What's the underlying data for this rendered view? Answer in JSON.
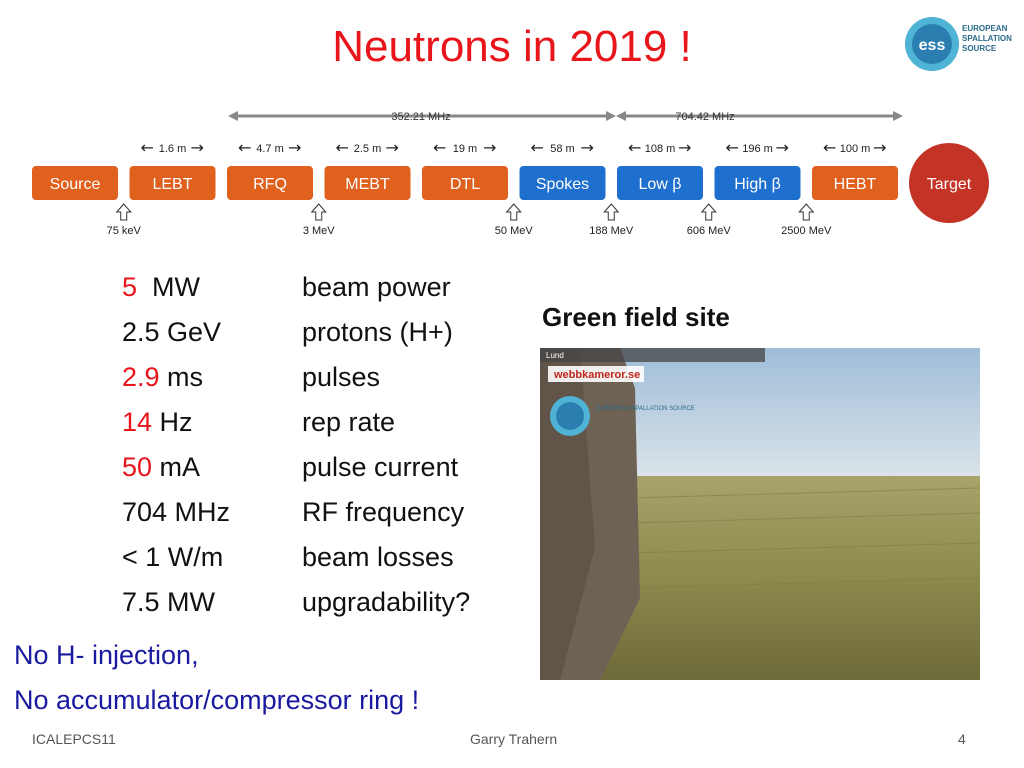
{
  "title": "Neutrons in 2019 !",
  "logo": {
    "line1": "EUROPEAN",
    "line2": "SPALLATION",
    "line3": "SOURCE",
    "mark": "ess"
  },
  "linac": {
    "freq1": "352.21 MHz",
    "freq2": "704.42 MHz",
    "blocks": [
      {
        "label": "Source",
        "color": "#e0601e"
      },
      {
        "label": "LEBT",
        "color": "#e0601e"
      },
      {
        "label": "RFQ",
        "color": "#e0601e"
      },
      {
        "label": "MEBT",
        "color": "#e0601e"
      },
      {
        "label": "DTL",
        "color": "#e0601e"
      },
      {
        "label": "Spokes",
        "color": "#1f6fcf"
      },
      {
        "label": "Low β",
        "color": "#1f6fcf"
      },
      {
        "label": "High β",
        "color": "#1f6fcf"
      },
      {
        "label": "HEBT",
        "color": "#e0601e"
      },
      {
        "label": "Target",
        "color": "#c43426"
      }
    ],
    "lengths": [
      "1.6 m",
      "4.7 m",
      "2.5 m",
      "19 m",
      "58 m",
      "108 m",
      "196 m",
      "100 m"
    ],
    "energies": [
      "75 keV",
      "3 MeV",
      "50 MeV",
      "188 MeV",
      "606 MeV",
      "2500 MeV"
    ]
  },
  "specs": [
    {
      "num": "5",
      "unit": "  MW",
      "desc": "beam power"
    },
    {
      "num": "",
      "unit": "2.5 GeV",
      "desc": "protons (H+)"
    },
    {
      "num": "2.9",
      "unit": " ms",
      "desc": "pulses"
    },
    {
      "num": "14",
      "unit": " Hz",
      "desc": "rep rate"
    },
    {
      "num": "50",
      "unit": " mA",
      "desc": "pulse current"
    },
    {
      "num": "",
      "unit": "704 MHz",
      "desc": "RF frequency"
    },
    {
      "num": "",
      "unit": "< 1 W/m",
      "desc": "beam losses"
    },
    {
      "num": "",
      "unit": "7.5 MW",
      "desc": "upgradability?"
    }
  ],
  "notes": [
    "No H- injection,",
    "No accumulator/compressor ring !"
  ],
  "green_label": "Green field site",
  "photo": {
    "caption": "Lund",
    "watermark": "webbkameror.se",
    "logo_text": "EUROPEAN SPALLATION SOURCE"
  },
  "footer": {
    "left": "ICALEPCS11",
    "center": "Garry Trahern",
    "page": "4"
  },
  "colors": {
    "title": "#e8151b",
    "notes": "#1a1aa0",
    "warm_block": "#e0601e",
    "cold_block": "#1f6fcf"
  }
}
